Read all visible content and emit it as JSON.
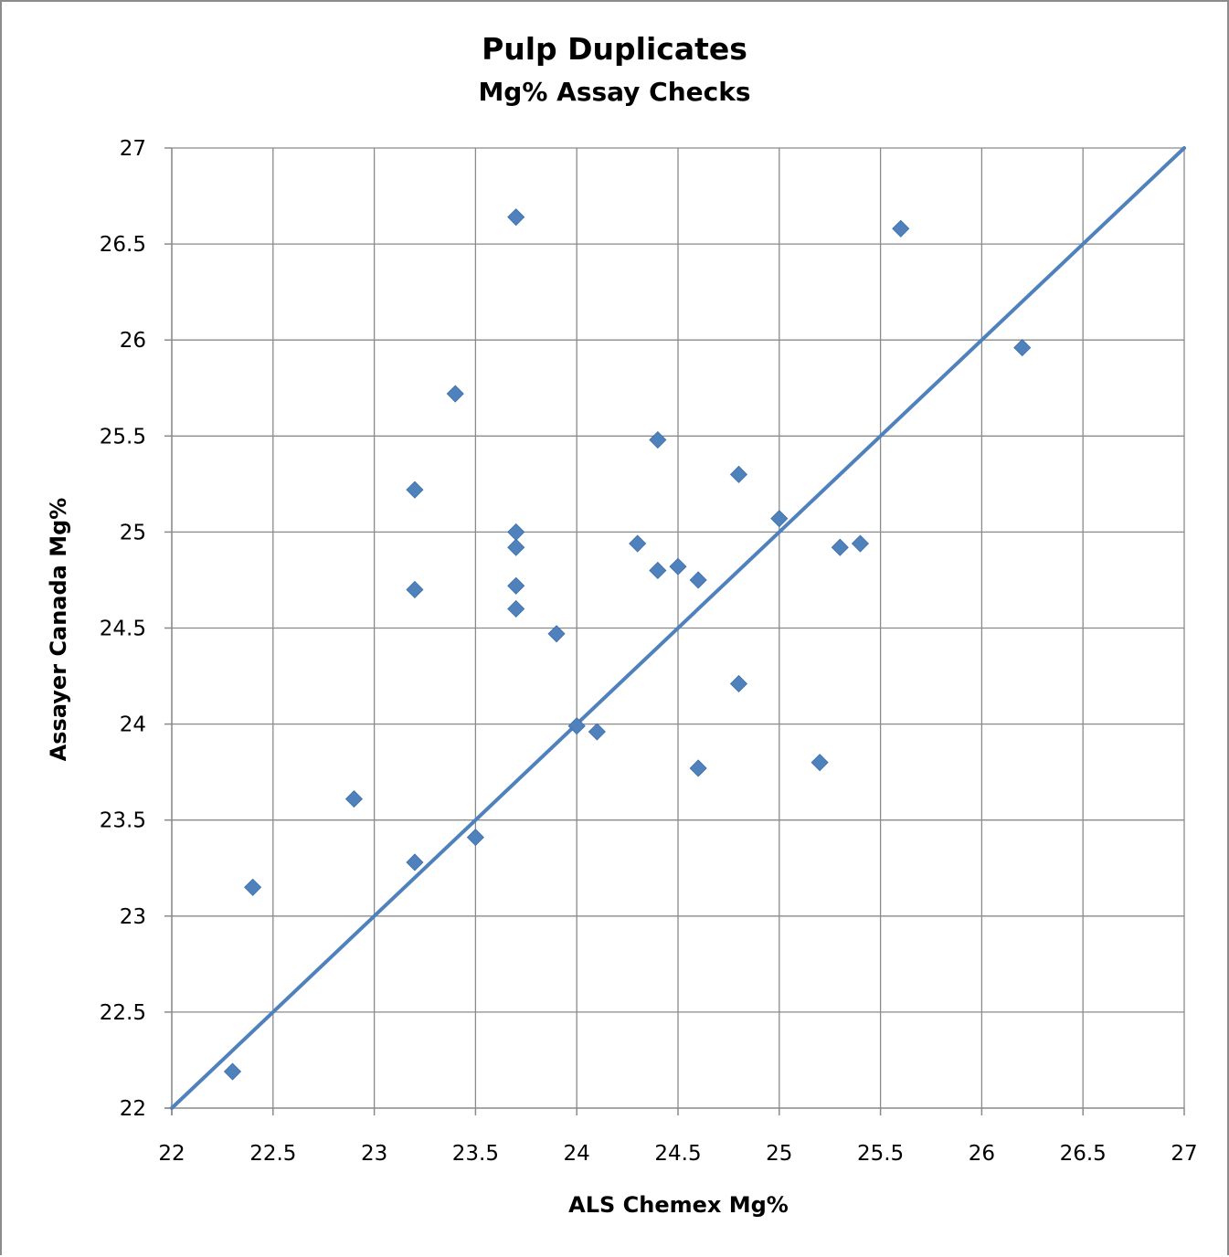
{
  "chart_data": {
    "type": "scatter",
    "title": "Pulp Duplicates",
    "subtitle": "Mg% Assay Checks",
    "xlabel": "ALS Chemex Mg%",
    "ylabel": "Assayer Canada Mg%",
    "xlim": [
      22,
      27
    ],
    "ylim": [
      22,
      27
    ],
    "xticks": [
      "22",
      "22.5",
      "23",
      "23.5",
      "24",
      "24.5",
      "25",
      "25.5",
      "26",
      "26.5",
      "27"
    ],
    "yticks": [
      "22",
      "22.5",
      "23",
      "23.5",
      "24",
      "24.5",
      "25",
      "25.5",
      "26",
      "26.5",
      "27"
    ],
    "grid": true,
    "marker_color": "#4F81BD",
    "line_color": "#4F81BD",
    "series": [
      {
        "marker": "diamond",
        "points": [
          {
            "x": 22.3,
            "y": 22.19
          },
          {
            "x": 22.4,
            "y": 23.15
          },
          {
            "x": 22.9,
            "y": 23.61
          },
          {
            "x": 23.2,
            "y": 23.28
          },
          {
            "x": 23.2,
            "y": 24.7
          },
          {
            "x": 23.2,
            "y": 25.22
          },
          {
            "x": 23.4,
            "y": 25.72
          },
          {
            "x": 23.5,
            "y": 23.41
          },
          {
            "x": 23.7,
            "y": 24.6
          },
          {
            "x": 23.7,
            "y": 24.72
          },
          {
            "x": 23.7,
            "y": 24.92
          },
          {
            "x": 23.7,
            "y": 25.0
          },
          {
            "x": 23.7,
            "y": 26.64
          },
          {
            "x": 23.9,
            "y": 24.47
          },
          {
            "x": 24.0,
            "y": 23.99
          },
          {
            "x": 24.1,
            "y": 23.96
          },
          {
            "x": 24.3,
            "y": 24.94
          },
          {
            "x": 24.4,
            "y": 24.8
          },
          {
            "x": 24.4,
            "y": 25.48
          },
          {
            "x": 24.5,
            "y": 24.82
          },
          {
            "x": 24.6,
            "y": 23.77
          },
          {
            "x": 24.6,
            "y": 24.75
          },
          {
            "x": 24.8,
            "y": 24.21
          },
          {
            "x": 24.8,
            "y": 25.3
          },
          {
            "x": 25.0,
            "y": 25.07
          },
          {
            "x": 25.2,
            "y": 23.8
          },
          {
            "x": 25.3,
            "y": 24.92
          },
          {
            "x": 25.4,
            "y": 24.94
          },
          {
            "x": 25.6,
            "y": 26.58
          },
          {
            "x": 26.2,
            "y": 25.96
          }
        ]
      }
    ],
    "reference_line": {
      "x": [
        22,
        27
      ],
      "y": [
        22,
        27
      ]
    }
  }
}
